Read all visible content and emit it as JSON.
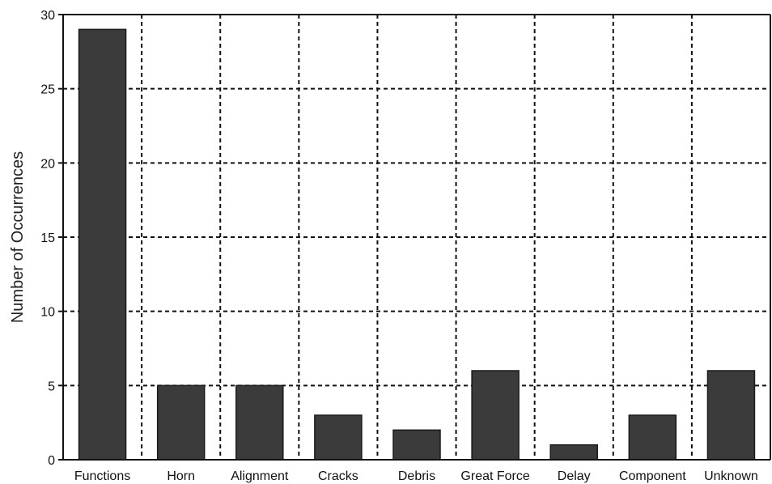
{
  "chart_data": {
    "type": "bar",
    "title": "",
    "xlabel": "",
    "ylabel": "Number of Occurrences",
    "ylim": [
      0,
      30
    ],
    "yticks": [
      0,
      5,
      10,
      15,
      20,
      25,
      30
    ],
    "grid": true,
    "categories": [
      "Functions",
      "Horn",
      "Alignment",
      "Cracks",
      "Debris",
      "Great Force",
      "Delay",
      "Component",
      "Unknown"
    ],
    "values": [
      29,
      5,
      5,
      3,
      2,
      6,
      1,
      3,
      6
    ],
    "colors": {
      "bar": "#3b3b3b",
      "grid": "#111111",
      "axis": "#111111"
    }
  }
}
